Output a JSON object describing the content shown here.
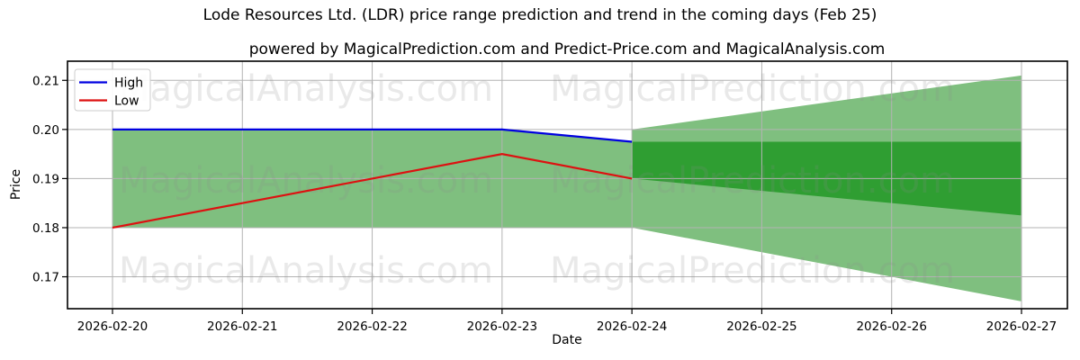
{
  "title": "Lode Resources Ltd. (LDR) price range prediction and trend in the coming days (Feb 25)",
  "subtitle": "powered by MagicalPrediction.com and Predict-Price.com and MagicalAnalysis.com",
  "watermarks": {
    "left": "MagicalAnalysis.com",
    "right": "MagicalPrediction.com"
  },
  "legend": {
    "items": [
      {
        "label": "High",
        "color": "#0000e0"
      },
      {
        "label": "Low",
        "color": "#dd1111"
      }
    ]
  },
  "axes": {
    "ylabel": "Price",
    "xlabel": "Date",
    "yticks": [
      {
        "label": "0.21",
        "value": 0.21
      },
      {
        "label": "0.20",
        "value": 0.2
      },
      {
        "label": "0.19",
        "value": 0.19
      },
      {
        "label": "0.18",
        "value": 0.18
      },
      {
        "label": "0.17",
        "value": 0.17
      }
    ]
  },
  "colors": {
    "high_line": "#0000e0",
    "low_line": "#dd1111",
    "band_light": "#7fbf7f",
    "band_dark": "#2f9e32",
    "grid": "#b3b3b3",
    "frame": "#000000",
    "watermark": "#8a8a8a"
  },
  "chart_data": {
    "type": "line",
    "title": "Lode Resources Ltd. (LDR) price range prediction and trend in the coming days (Feb 25)",
    "xlabel": "Date",
    "ylabel": "Price",
    "x": [
      "2026-02-20",
      "2026-02-21",
      "2026-02-22",
      "2026-02-23",
      "2026-02-24",
      "2026-02-25",
      "2026-02-26",
      "2026-02-27"
    ],
    "series": [
      {
        "name": "High",
        "color": "#0000e0",
        "x": [
          "2026-02-20",
          "2026-02-21",
          "2026-02-22",
          "2026-02-23",
          "2026-02-24"
        ],
        "values": [
          0.2,
          0.2,
          0.2,
          0.2,
          0.1975
        ]
      },
      {
        "name": "Low",
        "color": "#dd1111",
        "x": [
          "2026-02-20",
          "2026-02-21",
          "2026-02-22",
          "2026-02-23",
          "2026-02-24"
        ],
        "values": [
          0.18,
          0.185,
          0.19,
          0.195,
          0.19
        ]
      }
    ],
    "bands": [
      {
        "name": "historical-range",
        "color": "#7fbf7f",
        "x": [
          "2026-02-20",
          "2026-02-21",
          "2026-02-22",
          "2026-02-23",
          "2026-02-24"
        ],
        "upper": [
          0.2,
          0.2,
          0.2,
          0.2,
          0.1975
        ],
        "lower": [
          0.18,
          0.18,
          0.18,
          0.18,
          0.18
        ]
      },
      {
        "name": "forecast-outer-range",
        "color": "#7fbf7f",
        "x": [
          "2026-02-24",
          "2026-02-27"
        ],
        "upper": [
          0.2,
          0.211
        ],
        "lower": [
          0.18,
          0.165
        ]
      },
      {
        "name": "forecast-inner-range",
        "color": "#2f9e32",
        "x": [
          "2026-02-24",
          "2026-02-27"
        ],
        "upper": [
          0.1975,
          0.1975
        ],
        "lower": [
          0.19,
          0.1825
        ]
      }
    ],
    "ylim": [
      0.1635,
      0.2139
    ],
    "grid": true,
    "legend_position": "upper left"
  }
}
